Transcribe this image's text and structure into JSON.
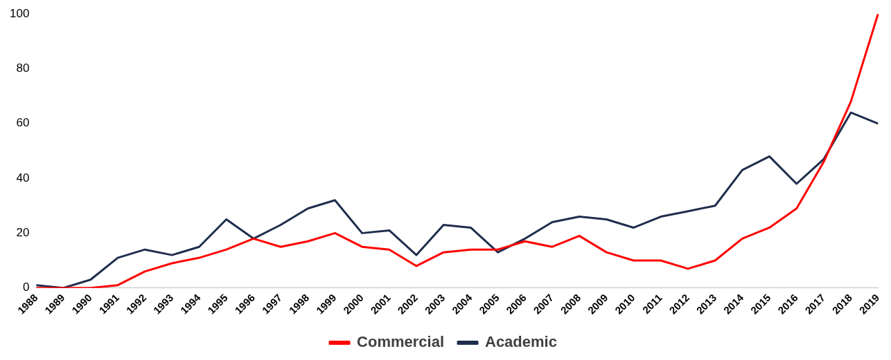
{
  "chart_data": {
    "type": "line",
    "categories": [
      "1988",
      "1989",
      "1990",
      "1991",
      "1992",
      "1993",
      "1994",
      "1995",
      "1996",
      "1997",
      "1998",
      "1999",
      "2000",
      "2001",
      "2002",
      "2003",
      "2004",
      "2005",
      "2006",
      "2007",
      "2008",
      "2009",
      "2010",
      "2011",
      "2012",
      "2013",
      "2014",
      "2015",
      "2016",
      "2017",
      "2018",
      "2019"
    ],
    "series": [
      {
        "name": "Commercial",
        "color": "#ff0000",
        "values": [
          0,
          0,
          0,
          1,
          6,
          9,
          11,
          14,
          18,
          15,
          17,
          20,
          15,
          14,
          8,
          13,
          14,
          14,
          17,
          15,
          19,
          13,
          10,
          10,
          7,
          10,
          18,
          22,
          29,
          46,
          68,
          100
        ]
      },
      {
        "name": "Academic",
        "color": "#1f2d4d",
        "values": [
          1,
          0,
          3,
          11,
          14,
          12,
          15,
          25,
          18,
          23,
          29,
          32,
          20,
          21,
          12,
          23,
          22,
          13,
          18,
          24,
          26,
          25,
          22,
          26,
          28,
          30,
          43,
          48,
          38,
          47,
          64,
          60
        ]
      }
    ],
    "ylim": [
      0,
      100
    ],
    "yticks": [
      0,
      20,
      40,
      60,
      80,
      100
    ],
    "grid": false,
    "legend": "bottom",
    "marker": "none",
    "line_style": "solid"
  }
}
